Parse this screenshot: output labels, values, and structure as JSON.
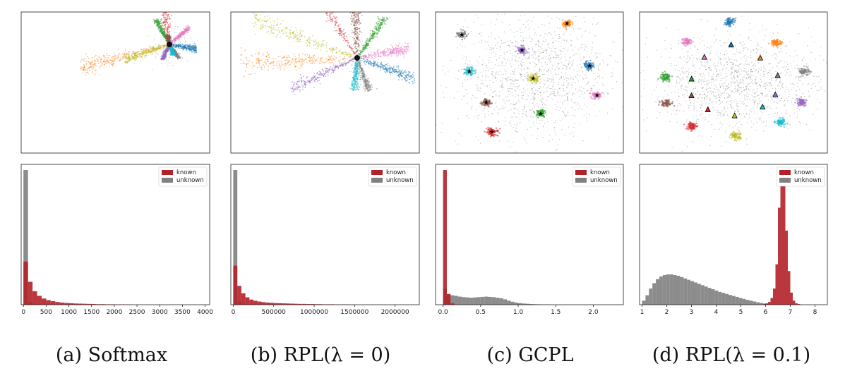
{
  "captions": [
    "(a) Softmax",
    "(b) RPL(λ = 0)",
    "(c) GCPL",
    "(d) RPL(λ = 0.1)"
  ],
  "colors": {
    "known": "#b22228",
    "unknown": "#808080",
    "classes": [
      "#1f77b4",
      "#ff7f0e",
      "#2ca02c",
      "#d62728",
      "#9467bd",
      "#8c564b",
      "#e377c2",
      "#7f7f7f",
      "#bcbd22",
      "#17becf"
    ]
  },
  "chart_data": [
    {
      "type": "scatter",
      "panel": "a",
      "description_of_pattern": "rays",
      "center": [
        0.5,
        0.5
      ],
      "rays": [
        {
          "class": 0,
          "angle": -10,
          "length": 0.3
        },
        {
          "class": 1,
          "angle": 195,
          "length": 1.0
        },
        {
          "class": 2,
          "angle": 118,
          "length": 0.3
        },
        {
          "class": 3,
          "angle": 98,
          "length": 0.62
        },
        {
          "class": 4,
          "angle": 245,
          "length": 0.18
        },
        {
          "class": 5,
          "angle": 100,
          "length": 0.1
        },
        {
          "class": 6,
          "angle": 40,
          "length": 0.28
        },
        {
          "class": 7,
          "angle": -55,
          "length": 0.18
        },
        {
          "class": 8,
          "angle": 200,
          "length": 0.52
        },
        {
          "class": 9,
          "angle": 290,
          "length": 0.12
        }
      ]
    },
    {
      "type": "scatter",
      "panel": "b",
      "description_of_pattern": "rays",
      "rays": [
        {
          "class": 0,
          "angle": -20,
          "length": 0.52
        },
        {
          "class": 1,
          "angle": 183,
          "length": 1.0
        },
        {
          "class": 2,
          "angle": 55,
          "length": 0.42
        },
        {
          "class": 3,
          "angle": 122,
          "length": 0.82
        },
        {
          "class": 4,
          "angle": 205,
          "length": 0.62
        },
        {
          "class": 5,
          "angle": 92,
          "length": 0.48
        },
        {
          "class": 6,
          "angle": 10,
          "length": 0.45
        },
        {
          "class": 7,
          "angle": -70,
          "length": 0.3
        },
        {
          "class": 8,
          "angle": 160,
          "length": 0.95
        },
        {
          "class": 9,
          "angle": 265,
          "length": 0.28
        }
      ]
    },
    {
      "type": "scatter",
      "panel": "c",
      "description_of_pattern": "clusters",
      "clusters": [
        {
          "class": 0,
          "x": 0.82,
          "y": 0.62
        },
        {
          "class": 1,
          "x": 0.7,
          "y": 0.92
        },
        {
          "class": 2,
          "x": 0.56,
          "y": 0.28
        },
        {
          "class": 3,
          "x": 0.3,
          "y": 0.15
        },
        {
          "class": 4,
          "x": 0.46,
          "y": 0.73
        },
        {
          "class": 5,
          "x": 0.27,
          "y": 0.36
        },
        {
          "class": 6,
          "x": 0.86,
          "y": 0.41
        },
        {
          "class": 7,
          "x": 0.14,
          "y": 0.84
        },
        {
          "class": 8,
          "x": 0.52,
          "y": 0.53
        },
        {
          "class": 9,
          "x": 0.18,
          "y": 0.58
        }
      ]
    },
    {
      "type": "scatter",
      "panel": "d",
      "description_of_pattern": "clusters",
      "clusters": [
        {
          "class": 0,
          "x": 0.48,
          "y": 0.93
        },
        {
          "class": 1,
          "x": 0.73,
          "y": 0.78
        },
        {
          "class": 2,
          "x": 0.14,
          "y": 0.54
        },
        {
          "class": 3,
          "x": 0.28,
          "y": 0.19
        },
        {
          "class": 4,
          "x": 0.86,
          "y": 0.36
        },
        {
          "class": 5,
          "x": 0.14,
          "y": 0.35
        },
        {
          "class": 6,
          "x": 0.25,
          "y": 0.79
        },
        {
          "class": 7,
          "x": 0.88,
          "y": 0.58
        },
        {
          "class": 8,
          "x": 0.51,
          "y": 0.12
        },
        {
          "class": 9,
          "x": 0.75,
          "y": 0.22
        }
      ]
    },
    {
      "type": "bar",
      "panel": "a",
      "xlim": [
        -50,
        4100
      ],
      "xticks": [
        0,
        500,
        1000,
        1500,
        2000,
        2500,
        3000,
        3500,
        4000
      ],
      "xtick_labels": [
        "0",
        "500",
        "1000",
        "1500",
        "2000",
        "2500",
        "3000",
        "3500",
        "4000"
      ],
      "bin_width": 100,
      "legend": [
        "known",
        "unknown"
      ],
      "legend_position": "upper-right",
      "series": [
        {
          "name": "known",
          "values": [
            0.32,
            0.17,
            0.1,
            0.066,
            0.046,
            0.034,
            0.026,
            0.02,
            0.016,
            0.013,
            0.011,
            0.009,
            0.008,
            0.007,
            0.006,
            0.005,
            0.004,
            0.004,
            0.003,
            0.003,
            0.002,
            0.002,
            0.002,
            0.001
          ]
        },
        {
          "name": "unknown",
          "values": [
            1.0,
            0.02,
            0.006
          ]
        }
      ]
    },
    {
      "type": "bar",
      "panel": "b",
      "xlim": [
        -30000,
        2300000
      ],
      "xticks": [
        0,
        500000,
        1000000,
        1500000,
        2000000
      ],
      "xtick_labels": [
        "0",
        "500000",
        "1000000",
        "1500000",
        "2000000"
      ],
      "bin_width": 50000,
      "legend": [
        "known",
        "unknown"
      ],
      "legend_position": "upper-right",
      "series": [
        {
          "name": "known",
          "values": [
            0.29,
            0.14,
            0.085,
            0.055,
            0.038,
            0.029,
            0.023,
            0.019,
            0.016,
            0.014,
            0.012,
            0.011,
            0.01,
            0.009,
            0.008,
            0.007,
            0.006,
            0.006,
            0.005,
            0.005,
            0.004,
            0.004,
            0.003,
            0.003,
            0.003,
            0.002,
            0.002,
            0.002,
            0.002,
            0.001
          ]
        },
        {
          "name": "unknown",
          "values": [
            1.0,
            0.025,
            0.008
          ]
        }
      ]
    },
    {
      "type": "bar",
      "panel": "c",
      "xlim": [
        -0.1,
        2.4
      ],
      "xticks": [
        0.0,
        0.5,
        1.0,
        1.5,
        2.0
      ],
      "xtick_labels": [
        "0.0",
        "0.5",
        "1.0",
        "1.5",
        "2.0"
      ],
      "bin_width": 0.05,
      "legend": [
        "known",
        "unknown"
      ],
      "legend_position": "upper-right",
      "series": [
        {
          "name": "known",
          "values": [
            1.0,
            0.08,
            0.01
          ]
        },
        {
          "name": "unknown",
          "values": [
            0.12,
            0.075,
            0.07,
            0.066,
            0.06,
            0.056,
            0.054,
            0.052,
            0.054,
            0.056,
            0.058,
            0.06,
            0.058,
            0.056,
            0.052,
            0.048,
            0.04,
            0.03,
            0.022,
            0.016,
            0.012,
            0.009,
            0.007,
            0.005,
            0.004,
            0.003,
            0.002,
            0.002,
            0.001
          ]
        }
      ]
    },
    {
      "type": "bar",
      "panel": "d",
      "xlim": [
        0.9,
        8.5
      ],
      "xticks": [
        1,
        2,
        3,
        4,
        5,
        6,
        7,
        8
      ],
      "xtick_labels": [
        "1",
        "2",
        "3",
        "4",
        "5",
        "6",
        "7",
        "8"
      ],
      "legend": [
        "known",
        "unknown"
      ],
      "legend_position": "upper-right",
      "series": [
        {
          "name": "unknown",
          "bin_start": 1.0,
          "bin_width": 0.14,
          "values": [
            0.03,
            0.07,
            0.12,
            0.16,
            0.19,
            0.21,
            0.22,
            0.225,
            0.225,
            0.22,
            0.215,
            0.205,
            0.195,
            0.185,
            0.175,
            0.165,
            0.155,
            0.145,
            0.135,
            0.125,
            0.115,
            0.105,
            0.095,
            0.088,
            0.08,
            0.072,
            0.065,
            0.058,
            0.05,
            0.043,
            0.036,
            0.03,
            0.024,
            0.018,
            0.013,
            0.009,
            0.006,
            0.004,
            0.002,
            0.001
          ]
        },
        {
          "name": "known",
          "bin_start": 5.9,
          "bin_width": 0.1,
          "values": [
            0.005,
            0.01,
            0.02,
            0.05,
            0.12,
            0.3,
            0.72,
            0.98,
            0.9,
            0.55,
            0.25,
            0.09,
            0.03,
            0.01,
            0.005
          ]
        }
      ]
    }
  ]
}
